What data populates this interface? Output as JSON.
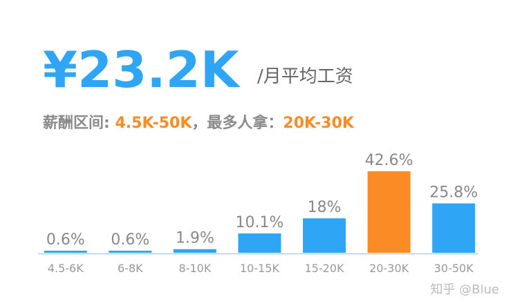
{
  "chart_data": {
    "type": "bar",
    "title": "¥23.2K",
    "subtitle": "/月平均工资",
    "annotation": [
      {
        "text": "薪酬区间: ",
        "color": "#8a8a8a"
      },
      {
        "text": "4.5K-50K",
        "color": "#fb8b24"
      },
      {
        "text": "，最多人拿：",
        "color": "#8a8a8a"
      },
      {
        "text": "20K-30K",
        "color": "#fb8b24"
      }
    ],
    "categories": [
      "4.5-6K",
      "6-8K",
      "8-10K",
      "10-15K",
      "15-20K",
      "20-30K",
      "30-50K"
    ],
    "values": [
      0.6,
      0.6,
      1.9,
      10.1,
      18,
      42.6,
      25.8
    ],
    "value_labels": [
      "0.6%",
      "0.6%",
      "1.9%",
      "10.1%",
      "18%",
      "42.6%",
      "25.8%"
    ],
    "colors": [
      "#2ea6f5",
      "#2ea6f5",
      "#2ea6f5",
      "#2ea6f5",
      "#2ea6f5",
      "#fb8b24",
      "#2ea6f5"
    ],
    "watermark": "知乎 @Blue"
  }
}
